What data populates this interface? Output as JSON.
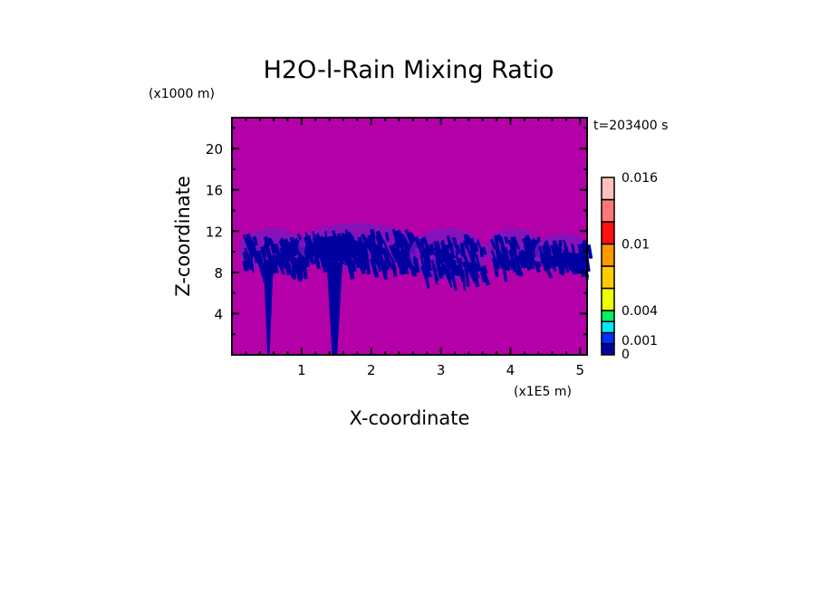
{
  "chart_data": {
    "type": "heatmap",
    "title": "H2O-l-Rain Mixing Ratio",
    "xlabel": "X-coordinate",
    "ylabel": "Z-coordinate",
    "x_unit": "(x1E5 m)",
    "y_unit": "(x1000 m)",
    "time_label": "t=203400 s",
    "xlim": [
      0,
      5.1
    ],
    "ylim": [
      0,
      23
    ],
    "xticks": [
      1,
      2,
      3,
      4,
      5
    ],
    "yticks": [
      4,
      8,
      12,
      16,
      20
    ],
    "background_color": "#b400a8",
    "colorbar": {
      "labels": [
        "0",
        "0.001",
        "0.004",
        "0.01",
        "0.016"
      ],
      "label_values": [
        0,
        0.001,
        0.004,
        0.01,
        0.016
      ],
      "colors": [
        "#0000a0",
        "#0030ff",
        "#00e8ff",
        "#00f060",
        "#eeff00",
        "#ffcc00",
        "#ff9900",
        "#ff1010",
        "#ff7878",
        "#ffc0c0"
      ]
    },
    "features": [
      {
        "name": "cloud-band-1",
        "x": [
          0.15,
          1.0
        ],
        "z": [
          8.5,
          12
        ]
      },
      {
        "name": "cloud-band-2",
        "x": [
          1.0,
          2.6
        ],
        "z": [
          8.5,
          12.5
        ]
      },
      {
        "name": "cloud-band-3",
        "x": [
          2.6,
          3.6
        ],
        "z": [
          7.5,
          12
        ]
      },
      {
        "name": "cloud-band-4",
        "x": [
          3.7,
          4.4
        ],
        "z": [
          8.5,
          12
        ]
      },
      {
        "name": "cloud-band-5",
        "x": [
          4.4,
          5.1
        ],
        "z": [
          8.5,
          11.5
        ]
      },
      {
        "name": "rain-shaft-1",
        "x": [
          0.5,
          0.55
        ],
        "z": [
          0,
          9
        ]
      },
      {
        "name": "rain-shaft-2",
        "x": [
          1.4,
          1.55
        ],
        "z": [
          0,
          9
        ]
      }
    ]
  }
}
